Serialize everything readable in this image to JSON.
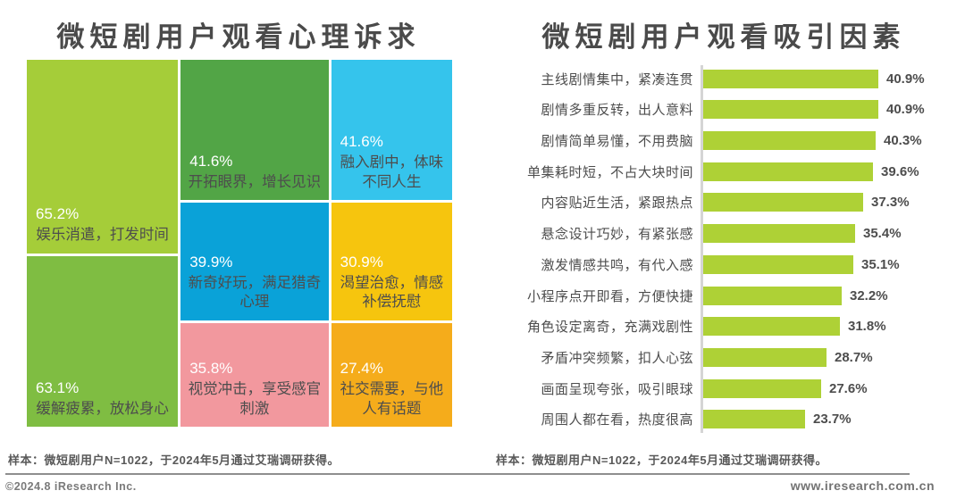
{
  "chart_data": [
    {
      "type": "treemap",
      "title": "微短剧用户观看心理诉求",
      "footnote": "样本：微短剧用户N=1022，于2024年5月通过艾瑞调研获得。",
      "items": [
        {
          "label": "娱乐消遣，打发时间",
          "value": 65.2,
          "display": "65.2%",
          "color": "#a5cd39"
        },
        {
          "label": "缓解疲累，放松身心",
          "value": 63.1,
          "display": "63.1%",
          "color": "#7fbd42"
        },
        {
          "label": "开拓眼界，增长见识",
          "value": 41.6,
          "display": "41.6%",
          "color": "#52a546"
        },
        {
          "label": "融入剧中，体味不同人生",
          "value": 41.6,
          "display": "41.6%",
          "color": "#35c4ec"
        },
        {
          "label": "新奇好玩，满足猎奇心理",
          "value": 39.9,
          "display": "39.9%",
          "color": "#0aa2d8"
        },
        {
          "label": "渴望治愈，情感补偿抚慰",
          "value": 30.9,
          "display": "30.9%",
          "color": "#f6c50e"
        },
        {
          "label": "视觉冲击，享受感官刺激",
          "value": 35.8,
          "display": "35.8%",
          "color": "#f2989e"
        },
        {
          "label": "社交需要，与他人有话题",
          "value": 27.4,
          "display": "27.4%",
          "color": "#f5ac1b"
        }
      ]
    },
    {
      "type": "bar",
      "orientation": "horizontal",
      "title": "微短剧用户观看吸引因素",
      "footnote": "样本：微短剧用户N=1022，于2024年5月通过艾瑞调研获得。",
      "bar_color": "#aed136",
      "xlim": [
        0,
        43
      ],
      "legend": "none",
      "grid": false,
      "categories": [
        "主线剧情集中，紧凑连贯",
        "剧情多重反转，出人意料",
        "剧情简单易懂，不用费脑",
        "单集耗时短，不占大块时间",
        "内容贴近生活，紧跟热点",
        "悬念设计巧妙，有紧张感",
        "激发情感共鸣，有代入感",
        "小程序点开即看，方便快捷",
        "角色设定离奇，充满戏剧性",
        "矛盾冲突频繁，扣人心弦",
        "画面呈现夸张，吸引眼球",
        "周围人都在看，热度很高"
      ],
      "values": [
        40.9,
        40.9,
        40.3,
        39.6,
        37.3,
        35.4,
        35.1,
        32.2,
        31.8,
        28.7,
        27.6,
        23.7
      ],
      "displays": [
        "40.9%",
        "40.9%",
        "40.3%",
        "39.6%",
        "37.3%",
        "35.4%",
        "35.1%",
        "32.2%",
        "31.8%",
        "28.7%",
        "27.6%",
        "23.7%"
      ]
    }
  ],
  "footer": {
    "copyright": "©2024.8 iResearch Inc.",
    "website": "www.iresearch.com.cn"
  }
}
